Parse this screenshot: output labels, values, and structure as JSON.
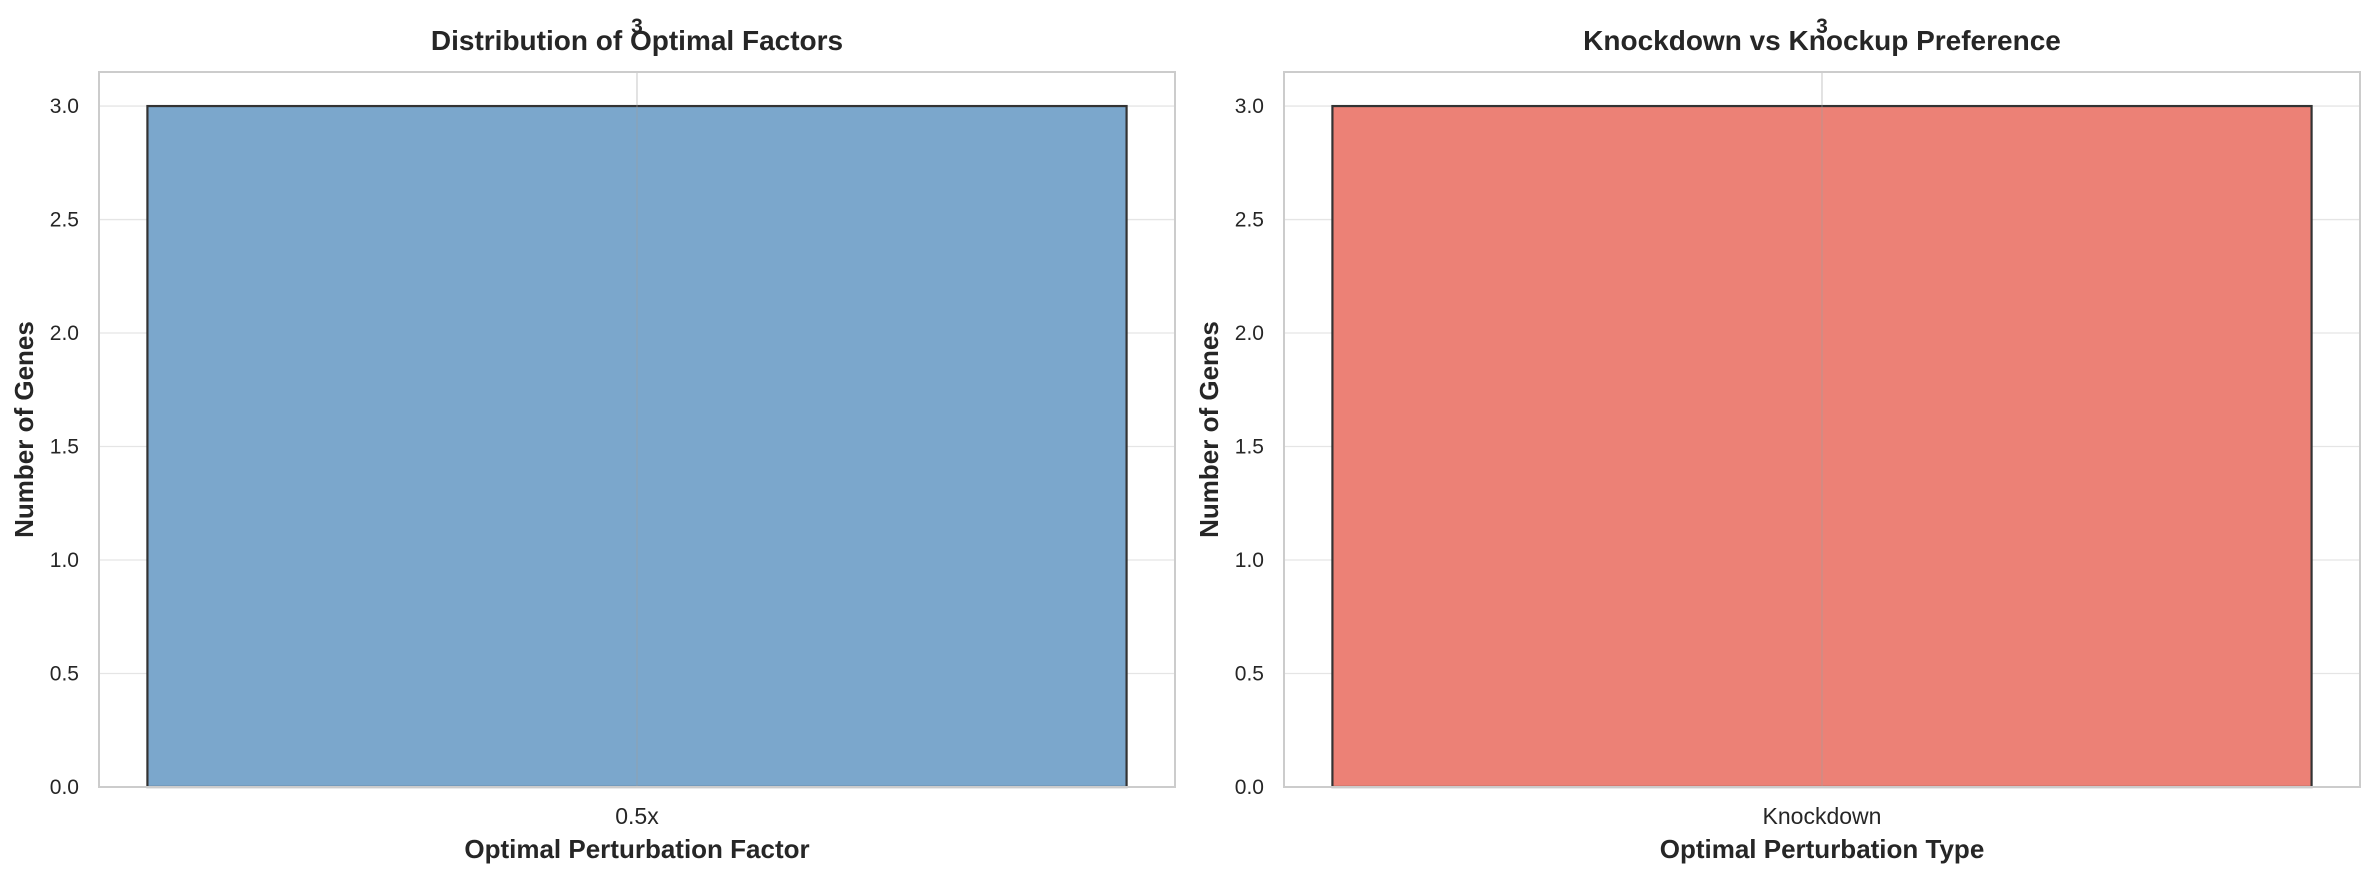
{
  "chart_data": [
    {
      "type": "bar",
      "title": "Distribution of Optimal Factors",
      "xlabel": "Optimal Perturbation Factor",
      "ylabel": "Number of Genes",
      "categories": [
        "0.5x"
      ],
      "values": [
        3
      ],
      "data_labels": [
        "3"
      ],
      "ylim": [
        0,
        3.15
      ],
      "yticks": [
        "0.0",
        "0.5",
        "1.0",
        "1.5",
        "2.0",
        "2.5",
        "3.0"
      ],
      "grid": true,
      "bar_color": "#7ba7cc",
      "edge_color": "#333333"
    },
    {
      "type": "bar",
      "title": "Knockdown vs Knockup Preference",
      "xlabel": "Optimal Perturbation Type",
      "ylabel": "Number of Genes",
      "categories": [
        "Knockdown"
      ],
      "values": [
        3
      ],
      "data_labels": [
        "3"
      ],
      "ylim": [
        0,
        3.15
      ],
      "yticks": [
        "0.0",
        "0.5",
        "1.0",
        "1.5",
        "2.0",
        "2.5",
        "3.0"
      ],
      "grid": true,
      "bar_color": "#ec8176",
      "edge_color": "#333333"
    }
  ]
}
